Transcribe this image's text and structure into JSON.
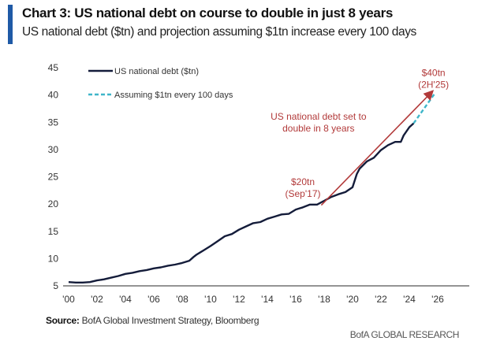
{
  "header": {
    "title": "Chart 3: US national debt on course to double in just 8 years",
    "subtitle": "US national debt ($tn) and projection assuming $1tn increase every 100 days"
  },
  "footer": {
    "source_label": "Source:",
    "source_text": " BofA Global Investment Strategy, Bloomberg",
    "brand": "BofA GLOBAL RESEARCH"
  },
  "colors": {
    "accent_bar": "#1f5aa6",
    "debt_line": "#141c3a",
    "projection_line": "#3fb6c9",
    "annotation": "#b23a3a"
  },
  "chart_data": {
    "type": "line",
    "title": "Chart 3: US national debt on course to double in just 8 years",
    "subtitle": "US national debt ($tn) and projection assuming $1tn increase every 100 days",
    "xlabel": "",
    "ylabel": "",
    "xlim": [
      2000,
      2028
    ],
    "ylim": [
      5,
      45
    ],
    "x_ticks": [
      2000,
      2002,
      2004,
      2006,
      2008,
      2010,
      2012,
      2014,
      2016,
      2018,
      2020,
      2022,
      2024,
      2026
    ],
    "x_tick_labels": [
      "'00",
      "'02",
      "'04",
      "'06",
      "'08",
      "'10",
      "'12",
      "'14",
      "'16",
      "'18",
      "'20",
      "'22",
      "'24",
      "'26"
    ],
    "y_ticks": [
      5,
      10,
      15,
      20,
      25,
      30,
      35,
      40,
      45
    ],
    "y_tick_labels": [
      "5",
      "10",
      "15",
      "20",
      "25",
      "30",
      "35",
      "40",
      "45"
    ],
    "grid": false,
    "legend": "top-left",
    "series": [
      {
        "name": "US national debt ($tn)",
        "style": "solid",
        "x": [
          2000,
          2000.5,
          2001,
          2001.5,
          2002,
          2002.5,
          2003,
          2003.5,
          2004,
          2004.5,
          2005,
          2005.5,
          2006,
          2006.5,
          2007,
          2007.5,
          2008,
          2008.5,
          2008.8,
          2009,
          2009.5,
          2010,
          2010.5,
          2011,
          2011.5,
          2012,
          2012.5,
          2013,
          2013.5,
          2014,
          2014.5,
          2015,
          2015.5,
          2016,
          2016.5,
          2017,
          2017.5,
          2018,
          2018.5,
          2019,
          2019.5,
          2020,
          2020.3,
          2020.5,
          2021,
          2021.5,
          2022,
          2022.5,
          2023,
          2023.4,
          2023.6,
          2024,
          2024.3
        ],
        "y": [
          5.7,
          5.6,
          5.6,
          5.7,
          6.0,
          6.2,
          6.5,
          6.8,
          7.2,
          7.4,
          7.7,
          7.9,
          8.2,
          8.4,
          8.7,
          8.9,
          9.2,
          9.6,
          10.3,
          10.7,
          11.5,
          12.3,
          13.2,
          14.1,
          14.5,
          15.3,
          15.9,
          16.5,
          16.7,
          17.3,
          17.7,
          18.1,
          18.2,
          19.0,
          19.4,
          19.9,
          19.9,
          20.6,
          21.3,
          21.8,
          22.2,
          23.1,
          25.5,
          26.5,
          27.8,
          28.5,
          29.9,
          30.8,
          31.4,
          31.4,
          32.6,
          34.1,
          34.8
        ]
      },
      {
        "name": "Assuming $1tn every 100 days",
        "style": "dashed",
        "x": [
          2024.3,
          2025.8
        ],
        "y": [
          34.8,
          40.3
        ]
      }
    ],
    "annotations": [
      {
        "text_lines": [
          "$20tn",
          "(Sep'17)"
        ],
        "x": 2016.5,
        "y": 23.5
      },
      {
        "text_lines": [
          "US national debt set to",
          "double in 8 years"
        ],
        "x": 2017.6,
        "y": 35.5
      },
      {
        "text_lines": [
          "$40tn",
          "(2H'25)"
        ],
        "x": 2025.7,
        "y": 43.5
      }
    ],
    "arrow": {
      "from": [
        2017.8,
        19.8
      ],
      "to": [
        2025.6,
        40.6
      ]
    }
  }
}
